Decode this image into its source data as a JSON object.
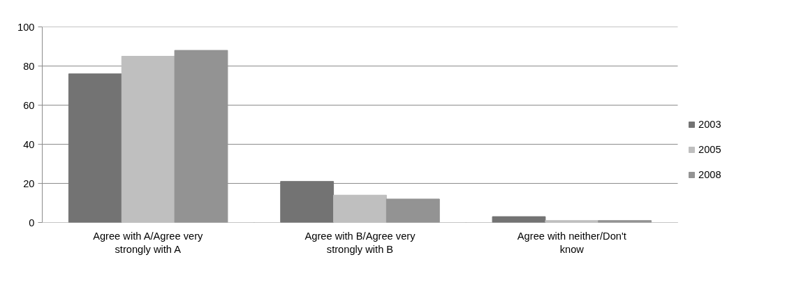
{
  "chart_data": {
    "type": "bar",
    "categories": [
      "Agree with A/Agree very strongly with A",
      "Agree with B/Agree very strongly with B",
      "Agree with neither/Don't know"
    ],
    "series": [
      {
        "name": "2003",
        "color": "#737373",
        "values": [
          76,
          21,
          3
        ]
      },
      {
        "name": "2005",
        "color": "#bfbfbf",
        "values": [
          85,
          14,
          1
        ]
      },
      {
        "name": "2008",
        "color": "#939393",
        "values": [
          88,
          12,
          1
        ]
      }
    ],
    "ylim": [
      0,
      100
    ],
    "yticks": [
      0,
      20,
      40,
      60,
      80,
      100
    ],
    "grid": "y",
    "legend": "right"
  }
}
